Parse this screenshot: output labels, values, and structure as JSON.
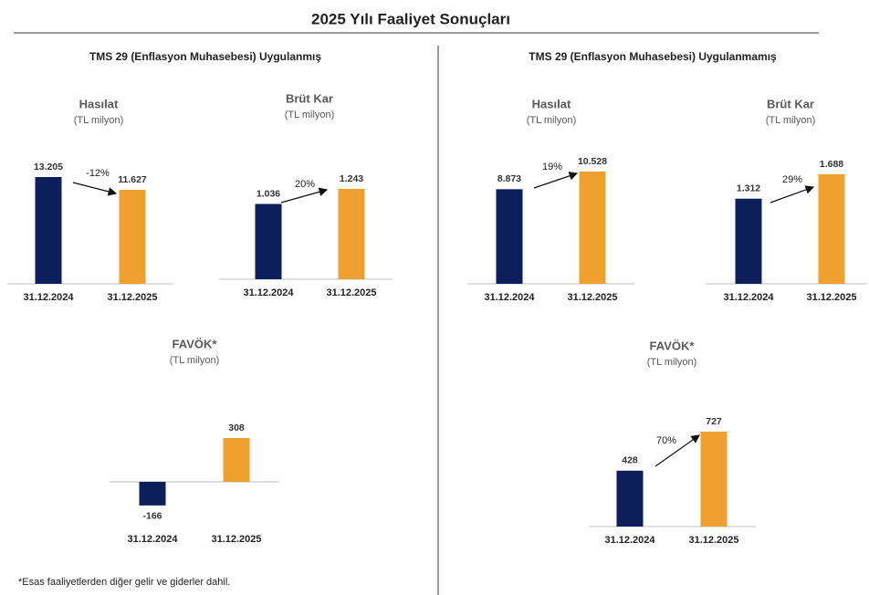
{
  "title": "2025 Yılı Faaliyet Sonuçları",
  "sections": [
    "TMS 29 (Enflasyon Muhasebesi) Uygulanmış",
    "TMS 29 (Enflasyon Muhasebesi) Uygulanmamış"
  ],
  "footnote": "*Esas faaliyetlerden diğer gelir ve giderler dahil.",
  "chart_data": [
    {
      "type": "bar",
      "title": "Hasılat",
      "subtitle": "(TL milyon)",
      "categories": [
        "31.12.2024",
        "31.12.2025"
      ],
      "values": [
        13205,
        11627
      ],
      "value_labels": [
        "13.205",
        "11.627"
      ],
      "colors": [
        "#0c1f5c",
        "#efa02e"
      ],
      "annotation": "-12%"
    },
    {
      "type": "bar",
      "title": "Brüt Kar",
      "subtitle": "(TL milyon)",
      "categories": [
        "31.12.2024",
        "31.12.2025"
      ],
      "values": [
        1036,
        1243
      ],
      "value_labels": [
        "1.036",
        "1.243"
      ],
      "colors": [
        "#0c1f5c",
        "#efa02e"
      ],
      "annotation": "20%"
    },
    {
      "type": "bar",
      "title": "FAVÖK*",
      "subtitle": "(TL milyon)",
      "categories": [
        "31.12.2024",
        "31.12.2025"
      ],
      "values": [
        -166,
        308
      ],
      "colors": [
        "#0c1f5c",
        "#efa02e"
      ]
    },
    {
      "type": "bar",
      "title": "Hasılat",
      "subtitle": "(TL milyon)",
      "categories": [
        "31.12.2024",
        "31.12.2025"
      ],
      "values": [
        8873,
        10528
      ],
      "value_labels": [
        "8.873",
        "10.528"
      ],
      "colors": [
        "#0c1f5c",
        "#efa02e"
      ],
      "annotation": "19%"
    },
    {
      "type": "bar",
      "title": "Brüt Kar",
      "subtitle": "(TL milyon)",
      "categories": [
        "31.12.2024",
        "31.12.2025"
      ],
      "values": [
        1312,
        1688
      ],
      "value_labels": [
        "1.312",
        "1.688"
      ],
      "colors": [
        "#0c1f5c",
        "#efa02e"
      ],
      "annotation": "29%"
    },
    {
      "type": "bar",
      "title": "FAVÖK*",
      "subtitle": "(TL milyon)",
      "categories": [
        "31.12.2024",
        "31.12.2025"
      ],
      "values": [
        428,
        727
      ],
      "colors": [
        "#0c1f5c",
        "#efa02e"
      ],
      "annotation": "70%"
    }
  ]
}
